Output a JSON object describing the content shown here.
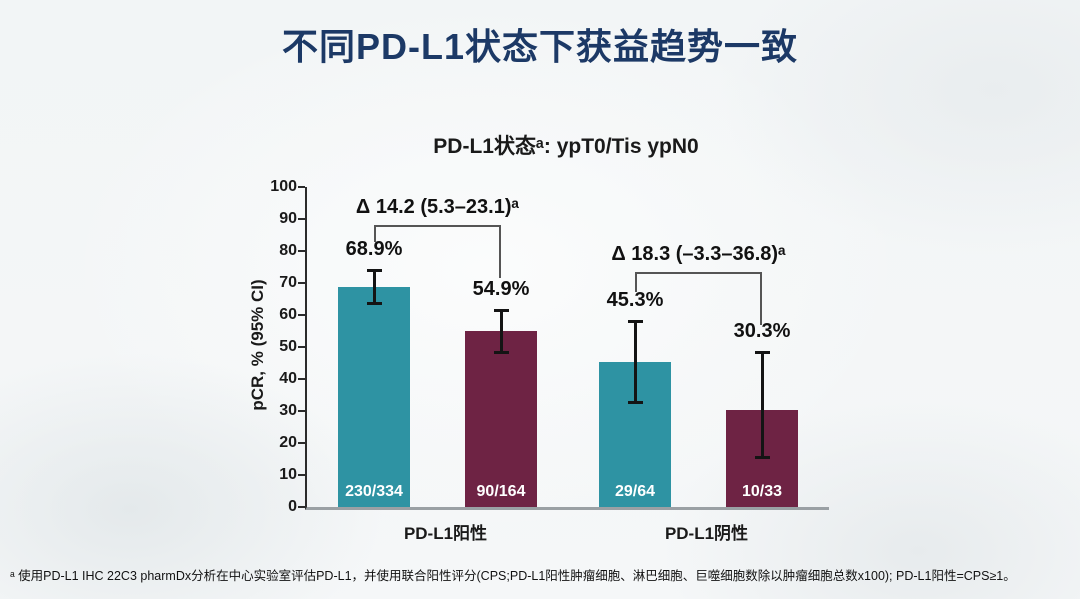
{
  "title": "不同PD-L1状态下获益趋势一致",
  "footnote": "ᵃ 使用PD-L1 IHC 22C3 pharmDx分析在中心实验室评估PD-L1，并使用联合阳性评分(CPS;PD-L1阳性肿瘤细胞、淋巴细胞、巨噬细胞数除以肿瘤细胞总数x100); PD-L1阳性=CPS≥1。",
  "colors": {
    "title_navy": "#1C3966",
    "teal": "#2E93A3",
    "maroon": "#6E2344",
    "axis": "#2B2B2B",
    "baseline": "#9AA0A4",
    "error_bar": "#141414",
    "bracket": "#555555"
  },
  "chart_data": {
    "type": "bar",
    "title": "PD-L1状态ᵃ: ypT0/Tis ypN0",
    "ylabel": "pCR, % (95% CI)",
    "xlabel": "",
    "ylim": [
      0,
      100
    ],
    "yticks": [
      0,
      10,
      20,
      30,
      40,
      50,
      60,
      70,
      80,
      90,
      100
    ],
    "grid": false,
    "legend": "none",
    "groups": [
      {
        "category": "PD-L1阳性",
        "delta_label": "Δ 14.2 (5.3–23.1)ᵃ",
        "bars": [
          {
            "label": "68.9%",
            "value": 68.9,
            "ci_low": 63.5,
            "ci_high": 74.0,
            "count": "230/334",
            "color": "teal"
          },
          {
            "label": "54.9%",
            "value": 54.9,
            "ci_low": 48.0,
            "ci_high": 61.5,
            "count": "90/164",
            "color": "maroon"
          }
        ]
      },
      {
        "category": "PD-L1阴性",
        "delta_label": "Δ 18.3 (–3.3–36.8)ᵃ",
        "bars": [
          {
            "label": "45.3%",
            "value": 45.3,
            "ci_low": 32.5,
            "ci_high": 58.0,
            "count": "29/64",
            "color": "teal"
          },
          {
            "label": "30.3%",
            "value": 30.3,
            "ci_low": 15.3,
            "ci_high": 48.4,
            "count": "10/33",
            "color": "maroon"
          }
        ]
      }
    ]
  }
}
